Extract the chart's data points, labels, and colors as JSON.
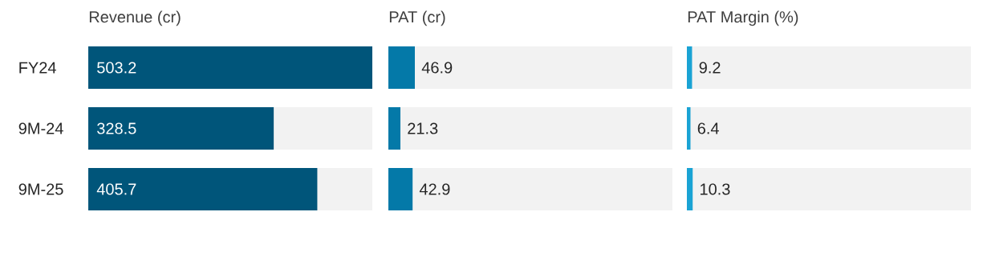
{
  "chart_data": [
    {
      "type": "bar",
      "orientation": "horizontal",
      "title": "Revenue (cr)",
      "categories": [
        "FY24",
        "9M-24",
        "9M-25"
      ],
      "values": [
        503.2,
        328.5,
        405.7
      ],
      "color": "#00557a",
      "xlim": [
        0,
        503.2
      ],
      "data_labels": true,
      "tick_labels": "y"
    },
    {
      "type": "bar",
      "orientation": "horizontal",
      "title": "PAT (cr)",
      "categories": [
        null,
        null,
        null
      ],
      "values": [
        46.9,
        21.3,
        42.9
      ],
      "color": "#0479a8",
      "xlim": [
        0,
        503.2
      ],
      "data_labels": true,
      "tick_labels": false
    },
    {
      "type": "bar",
      "orientation": "horizontal",
      "title": "PAT Margin (%)",
      "categories": [
        null,
        null,
        null
      ],
      "values": [
        9.2,
        6.4,
        10.3
      ],
      "color": "#1aa3d4",
      "xlim": [
        0,
        503.2
      ],
      "data_labels": true,
      "tick_labels": false
    }
  ]
}
